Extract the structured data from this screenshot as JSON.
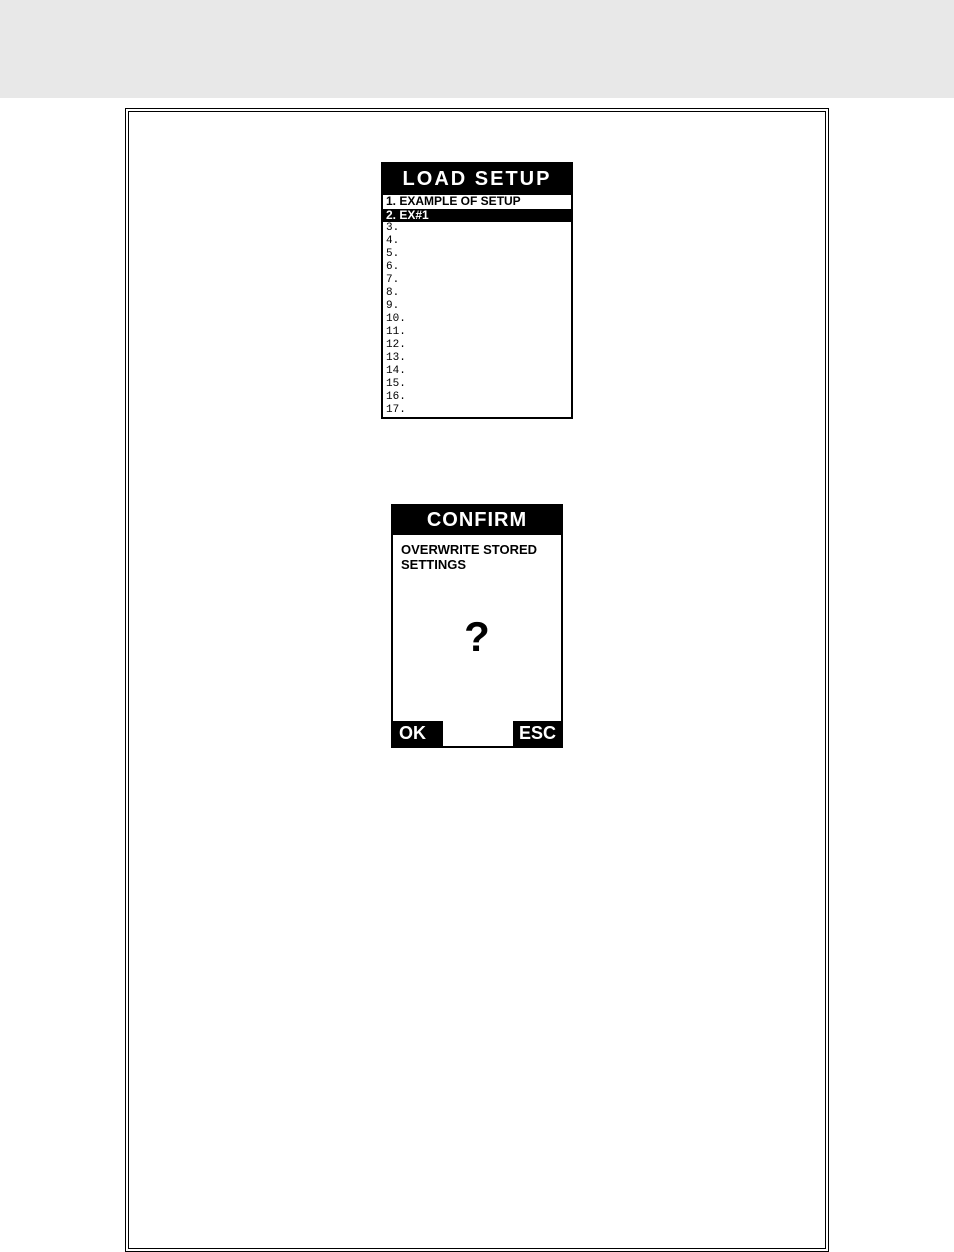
{
  "load_setup": {
    "title": "LOAD  SETUP",
    "items": [
      {
        "num": "1.",
        "label": "EXAMPLE OF SETUP",
        "selected": false,
        "bold": true
      },
      {
        "num": "2.",
        "label": "EX#1",
        "selected": true,
        "bold": true
      },
      {
        "num": "3.",
        "label": "",
        "selected": false,
        "bold": false
      },
      {
        "num": "4.",
        "label": "",
        "selected": false,
        "bold": false
      },
      {
        "num": "5.",
        "label": "",
        "selected": false,
        "bold": false
      },
      {
        "num": "6.",
        "label": "",
        "selected": false,
        "bold": false
      },
      {
        "num": "7.",
        "label": "",
        "selected": false,
        "bold": false
      },
      {
        "num": "8.",
        "label": "",
        "selected": false,
        "bold": false
      },
      {
        "num": "9.",
        "label": "",
        "selected": false,
        "bold": false
      },
      {
        "num": "10.",
        "label": "",
        "selected": false,
        "bold": false
      },
      {
        "num": "11.",
        "label": "",
        "selected": false,
        "bold": false
      },
      {
        "num": "12.",
        "label": "",
        "selected": false,
        "bold": false
      },
      {
        "num": "13.",
        "label": "",
        "selected": false,
        "bold": false
      },
      {
        "num": "14.",
        "label": "",
        "selected": false,
        "bold": false
      },
      {
        "num": "15.",
        "label": "",
        "selected": false,
        "bold": false
      },
      {
        "num": "16.",
        "label": "",
        "selected": false,
        "bold": false
      },
      {
        "num": "17.",
        "label": "",
        "selected": false,
        "bold": false
      }
    ]
  },
  "confirm": {
    "title": "CONFIRM",
    "message_line1": "OVERWRITE STORED",
    "message_line2": "SETTINGS",
    "question_mark": "?",
    "ok_label": "OK",
    "esc_label": "ESC"
  },
  "colors": {
    "black": "#000000",
    "white": "#ffffff",
    "top_bar": "#e8e8e8"
  }
}
